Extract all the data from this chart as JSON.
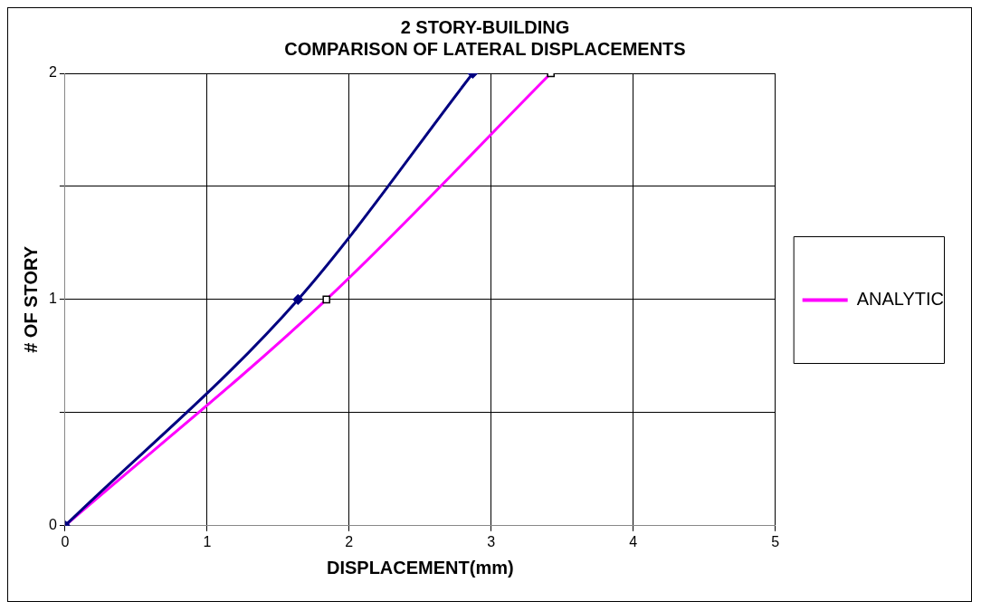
{
  "chart_data": {
    "type": "line",
    "title": "2 STORY-BUILDING\nCOMPARISON OF LATERAL DISPLACEMENTS",
    "xlabel": "DISPLACEMENT(mm)",
    "ylabel": "# OF STORY",
    "xlim": [
      0,
      5
    ],
    "xticks": [
      0,
      1,
      2,
      3,
      4,
      5
    ],
    "ylim": [
      0,
      2
    ],
    "yticks": [
      0,
      {
        "value": 0.5,
        "label": null
      },
      1,
      {
        "value": 1.5,
        "label": null
      },
      2
    ],
    "grid": true,
    "legend": "right",
    "line_style": "solid",
    "series": [
      {
        "color": "#000080",
        "marker": "diamond",
        "x": [
          0,
          1.64,
          2.87
        ],
        "values": [
          0,
          1,
          2
        ]
      },
      {
        "name": "ANALYTIC",
        "color": "#ff00ff",
        "marker": "square",
        "x": [
          0,
          1.84,
          3.42
        ],
        "values": [
          0,
          1,
          2
        ]
      }
    ]
  }
}
